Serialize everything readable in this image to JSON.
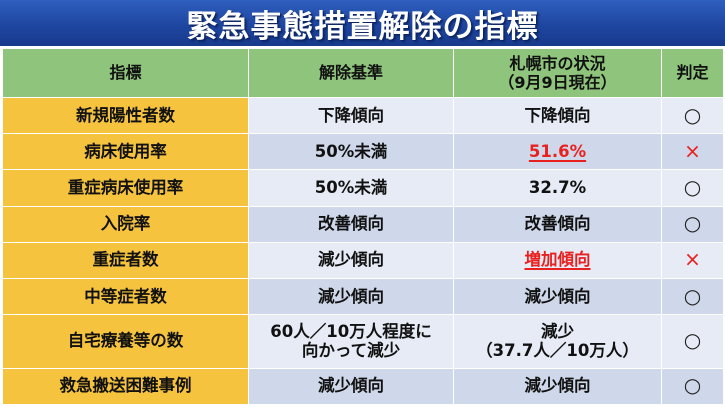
{
  "title": "緊急事態措置解除の指標",
  "header": {
    "indicator": "指標",
    "criteria": "解除基準",
    "status_line1": "札幌市の状況",
    "status_line2": "（9月9日現在）",
    "judgement": "判定"
  },
  "rows": [
    {
      "indicator": "新規陽性者数",
      "criteria": [
        "下降傾向"
      ],
      "status": [
        "下降傾向"
      ],
      "status_bad": false,
      "judgement": "○"
    },
    {
      "indicator": "病床使用率",
      "criteria": [
        "50%未満"
      ],
      "status": [
        "51.6%"
      ],
      "status_bad": true,
      "judgement": "×"
    },
    {
      "indicator": "重症病床使用率",
      "criteria": [
        "50%未満"
      ],
      "status": [
        "32.7%"
      ],
      "status_bad": false,
      "judgement": "○"
    },
    {
      "indicator": "入院率",
      "criteria": [
        "改善傾向"
      ],
      "status": [
        "改善傾向"
      ],
      "status_bad": false,
      "judgement": "○"
    },
    {
      "indicator": "重症者数",
      "criteria": [
        "減少傾向"
      ],
      "status": [
        "増加傾向"
      ],
      "status_bad": true,
      "judgement": "×"
    },
    {
      "indicator": "中等症者数",
      "criteria": [
        "減少傾向"
      ],
      "status": [
        "減少傾向"
      ],
      "status_bad": false,
      "judgement": "○"
    },
    {
      "indicator": "自宅療養等の数",
      "criteria": [
        "60人／10万人程度に",
        "向かって減少"
      ],
      "status": [
        "減少",
        "（37.7人／10万人）"
      ],
      "status_bad": false,
      "judgement": "○"
    },
    {
      "indicator": "救急搬送困難事例",
      "criteria": [
        "減少傾向"
      ],
      "status": [
        "減少傾向"
      ],
      "status_bad": false,
      "judgement": "○"
    }
  ],
  "colors": {
    "title_bg": "#1e46a0",
    "header_bg": "#8fc47d",
    "indicator_bg": "#f5c33e",
    "row_light": "#e6ebf5",
    "row_dark": "#cfd8ea",
    "bad_text": "#e8211f"
  }
}
